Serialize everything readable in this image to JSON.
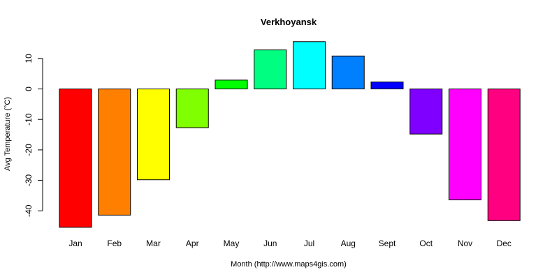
{
  "chart_data": {
    "type": "bar",
    "title": "Verkhoyansk",
    "xlabel": "Month (http://www.maps4gis.com)",
    "ylabel": "Avg Temperature (°C)",
    "categories": [
      "Jan",
      "Feb",
      "Mar",
      "Apr",
      "May",
      "Jun",
      "Jul",
      "Aug",
      "Sept",
      "Oct",
      "Nov",
      "Dec"
    ],
    "values": [
      -45.4,
      -41.4,
      -29.8,
      -12.7,
      2.9,
      12.8,
      15.5,
      10.8,
      2.3,
      -14.8,
      -36.4,
      -43.2
    ],
    "colors": [
      "#FF0000",
      "#FF8000",
      "#FFFF00",
      "#80FF00",
      "#00FF00",
      "#00FF80",
      "#00FFFF",
      "#0080FF",
      "#0000FF",
      "#8000FF",
      "#FF00FF",
      "#FF0080"
    ],
    "yticks": [
      10,
      0,
      -10,
      -20,
      -30,
      -40
    ],
    "ylim": [
      -45.4,
      15.5
    ],
    "grid": false,
    "legend": "none"
  }
}
